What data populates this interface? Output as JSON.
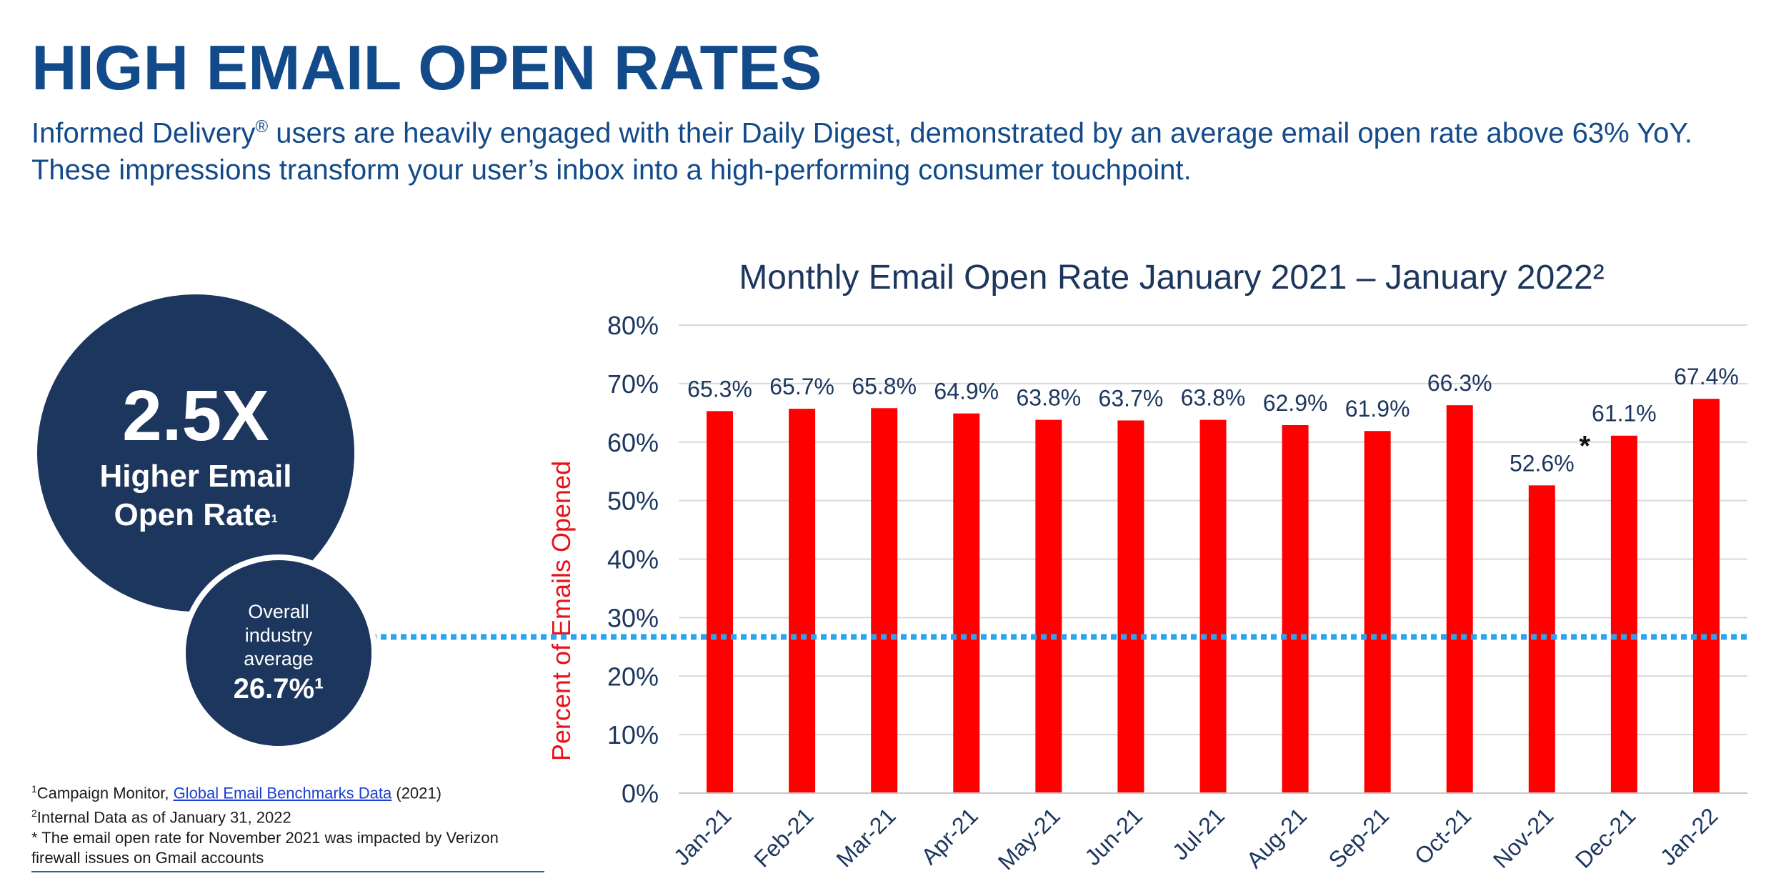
{
  "header": {
    "title": "HIGH EMAIL OPEN RATES",
    "subtitle_pre": "Informed Delivery",
    "subtitle_reg": "®",
    "subtitle_post": " users are heavily engaged with their Daily Digest, demonstrated by an average email open rate above 63% YoY. These impressions transform your user’s inbox into a high-performing consumer touchpoint."
  },
  "callout": {
    "big_value": "2.5X",
    "big_label": "Higher Email Open Rate",
    "big_label_sup": "1",
    "small_label": "Overall industry average",
    "small_value": "26.7%¹"
  },
  "footnotes": {
    "n1_sup": "1",
    "n1_text": "Campaign Monitor, ",
    "n1_link": "Global Email Benchmarks Data",
    "n1_tail": " (2021)",
    "n2_sup": "2",
    "n2_text": "Internal Data as of January 31, 2022",
    "n3": "* The email open rate for November 2021 was impacted by Verizon firewall issues on Gmail accounts"
  },
  "colors": {
    "title": "#124a8a",
    "bar": "#ff0000",
    "axis_label": "#e8121a",
    "circle": "#1c365e",
    "reference_line": "#2aa6ee",
    "tick_text": "#1c365e"
  },
  "chart_data": {
    "type": "bar",
    "title": "Monthly Email Open Rate January 2021 – January 2022²",
    "ylabel": "Percent of Emails Opened",
    "ylim": [
      0,
      80
    ],
    "yticks": [
      "0%",
      "10%",
      "20%",
      "30%",
      "40%",
      "50%",
      "60%",
      "70%",
      "80%"
    ],
    "grid": true,
    "categories": [
      "Jan-21",
      "Feb-21",
      "Mar-21",
      "Apr-21",
      "May-21",
      "Jun-21",
      "Jul-21",
      "Aug-21",
      "Sep-21",
      "Oct-21",
      "Nov-21",
      "Dec-21",
      "Jan-22"
    ],
    "values": [
      65.3,
      65.7,
      65.8,
      64.9,
      63.8,
      63.7,
      63.8,
      62.9,
      61.9,
      66.3,
      52.6,
      61.1,
      67.4
    ],
    "data_labels": [
      "65.3%",
      "65.7%",
      "65.8%",
      "64.9%",
      "63.8%",
      "63.7%",
      "63.8%",
      "62.9%",
      "61.9%",
      "66.3%",
      "52.6%",
      "61.1%",
      "67.4%"
    ],
    "annotations": [
      {
        "category": "Nov-21",
        "text": "*"
      }
    ],
    "reference_line": {
      "value": 26.7
    }
  }
}
